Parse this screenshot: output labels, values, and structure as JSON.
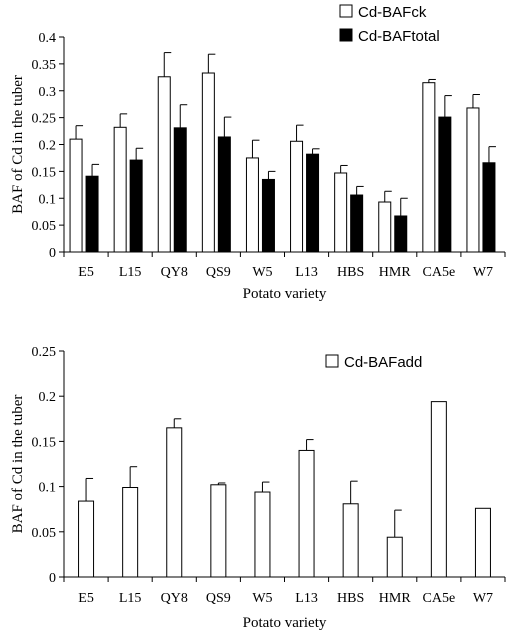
{
  "chart_data": [
    {
      "type": "bar",
      "categories": [
        "E5",
        "L15",
        "QY8",
        "QS9",
        "W5",
        "L13",
        "HBS",
        "HMR",
        "CA5e",
        "W7"
      ],
      "series": [
        {
          "name": "Cd-BAFck",
          "color": "#ffffff",
          "values": [
            0.21,
            0.232,
            0.326,
            0.333,
            0.175,
            0.206,
            0.147,
            0.093,
            0.315,
            0.268
          ],
          "errors": [
            0.025,
            0.025,
            0.045,
            0.035,
            0.033,
            0.03,
            0.014,
            0.02,
            0.006,
            0.025
          ]
        },
        {
          "name": "Cd-BAFtotal",
          "color": "#000000",
          "values": [
            0.141,
            0.171,
            0.231,
            0.214,
            0.135,
            0.182,
            0.106,
            0.067,
            0.251,
            0.166
          ],
          "errors": [
            0.022,
            0.022,
            0.043,
            0.037,
            0.015,
            0.01,
            0.016,
            0.033,
            0.04,
            0.03
          ]
        }
      ],
      "xlabel": "Potato variety",
      "ylabel": "BAF  of Cd in the tuber",
      "ylim": [
        0,
        0.4
      ],
      "yticks": [
        "0",
        "0.05",
        "0.1",
        "0.15",
        "0.2",
        "0.25",
        "0.3",
        "0.35",
        "0.4"
      ],
      "grid": false,
      "legend_position": "top-right"
    },
    {
      "type": "bar",
      "categories": [
        "E5",
        "L15",
        "QY8",
        "QS9",
        "W5",
        "L13",
        "HBS",
        "HMR",
        "CA5e",
        "W7"
      ],
      "series": [
        {
          "name": "Cd-BAFadd",
          "color": "#ffffff",
          "values": [
            0.084,
            0.099,
            0.165,
            0.102,
            0.094,
            0.14,
            0.081,
            0.044,
            0.194,
            0.076
          ],
          "errors": [
            0.025,
            0.023,
            0.01,
            0.002,
            0.011,
            0.012,
            0.025,
            0.03,
            0,
            0
          ]
        }
      ],
      "xlabel": "Potato variety",
      "ylabel": "BAF  of Cd in the tuber",
      "ylim": [
        0,
        0.25
      ],
      "yticks": [
        "0",
        "0.05",
        "0.1",
        "0.15",
        "0.2",
        "0.25"
      ],
      "grid": false,
      "legend_position": "top-right"
    }
  ]
}
